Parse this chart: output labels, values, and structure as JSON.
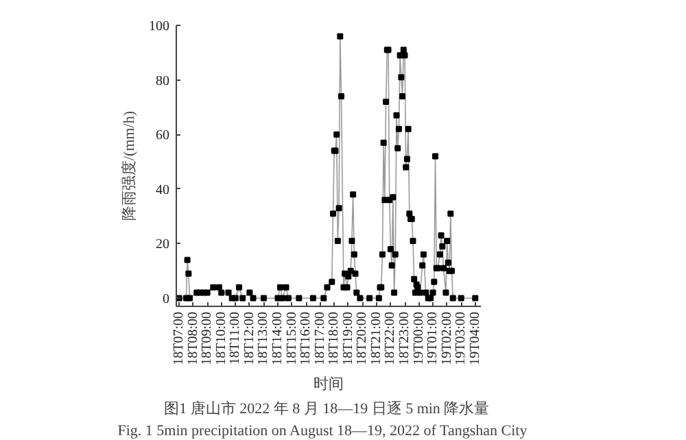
{
  "chart_data": {
    "type": "line",
    "xlabel": "时间",
    "ylabel": "降雨强度/(mm/h)",
    "annotations": [
      "图1  唐山市 2022 年 8 月 18—19 日逐 5 min 降水量",
      "Fig. 1    5min precipitation on August 18—19, 2022 of Tangshan City"
    ],
    "xlim": [
      "2022-08-18T06:48",
      "2022-08-19T04:24"
    ],
    "ylim": [
      -3,
      100
    ],
    "xticks": [
      {
        "value": "2022-08-18T07:00",
        "label": "18T07:00"
      },
      {
        "value": "2022-08-18T08:00",
        "label": "18T08:00"
      },
      {
        "value": "2022-08-18T09:00",
        "label": "18T09:00"
      },
      {
        "value": "2022-08-18T10:00",
        "label": "18T10:00"
      },
      {
        "value": "2022-08-18T11:00",
        "label": "18T11:00"
      },
      {
        "value": "2022-08-18T12:00",
        "label": "18T12:00"
      },
      {
        "value": "2022-08-18T13:00",
        "label": "18T13:00"
      },
      {
        "value": "2022-08-18T14:00",
        "label": "18T14:00"
      },
      {
        "value": "2022-08-18T15:00",
        "label": "18T15:00"
      },
      {
        "value": "2022-08-18T16:00",
        "label": "18T16:00"
      },
      {
        "value": "2022-08-18T17:00",
        "label": "18T17:00"
      },
      {
        "value": "2022-08-18T18:00",
        "label": "18T18:00"
      },
      {
        "value": "2022-08-18T19:00",
        "label": "18T19:00"
      },
      {
        "value": "2022-08-18T20:00",
        "label": "18T20:00"
      },
      {
        "value": "2022-08-18T21:00",
        "label": "18T21:00"
      },
      {
        "value": "2022-08-18T22:00",
        "label": "18T22:00"
      },
      {
        "value": "2022-08-18T23:00",
        "label": "18T23:00"
      },
      {
        "value": "2022-08-19T00:00",
        "label": "19T00:00"
      },
      {
        "value": "2022-08-19T01:00",
        "label": "19T01:00"
      },
      {
        "value": "2022-08-19T02:00",
        "label": "19T02:00"
      },
      {
        "value": "2022-08-19T03:00",
        "label": "19T03:00"
      },
      {
        "value": "2022-08-19T04:00",
        "label": "19T04:00"
      }
    ],
    "yticks": [
      0,
      20,
      40,
      60,
      80,
      100
    ],
    "grid": false,
    "marker": "square",
    "line_style": "solid",
    "series": [
      {
        "color": "#000000",
        "x": [
          "2022-08-18T07:00",
          "2022-08-18T07:30",
          "2022-08-18T07:35",
          "2022-08-18T07:40",
          "2022-08-18T07:45",
          "2022-08-18T08:15",
          "2022-08-18T08:30",
          "2022-08-18T08:45",
          "2022-08-18T09:00",
          "2022-08-18T09:25",
          "2022-08-18T09:50",
          "2022-08-18T10:00",
          "2022-08-18T10:30",
          "2022-08-18T10:45",
          "2022-08-18T11:00",
          "2022-08-18T11:15",
          "2022-08-18T11:30",
          "2022-08-18T12:00",
          "2022-08-18T12:15",
          "2022-08-18T13:00",
          "2022-08-18T14:00",
          "2022-08-18T14:10",
          "2022-08-18T14:20",
          "2022-08-18T14:35",
          "2022-08-18T14:45",
          "2022-08-18T15:30",
          "2022-08-18T16:30",
          "2022-08-18T17:15",
          "2022-08-18T17:30",
          "2022-08-18T17:50",
          "2022-08-18T17:55",
          "2022-08-18T18:00",
          "2022-08-18T18:05",
          "2022-08-18T18:10",
          "2022-08-18T18:15",
          "2022-08-18T18:20",
          "2022-08-18T18:25",
          "2022-08-18T18:30",
          "2022-08-18T18:40",
          "2022-08-18T18:45",
          "2022-08-18T18:55",
          "2022-08-18T19:00",
          "2022-08-18T19:10",
          "2022-08-18T19:15",
          "2022-08-18T19:20",
          "2022-08-18T19:25",
          "2022-08-18T19:30",
          "2022-08-18T19:35",
          "2022-08-18T19:50",
          "2022-08-18T20:30",
          "2022-08-18T21:10",
          "2022-08-18T21:15",
          "2022-08-18T21:20",
          "2022-08-18T21:25",
          "2022-08-18T21:30",
          "2022-08-18T21:35",
          "2022-08-18T21:40",
          "2022-08-18T21:45",
          "2022-08-18T21:50",
          "2022-08-18T21:55",
          "2022-08-18T22:00",
          "2022-08-18T22:05",
          "2022-08-18T22:10",
          "2022-08-18T22:15",
          "2022-08-18T22:20",
          "2022-08-18T22:25",
          "2022-08-18T22:30",
          "2022-08-18T22:35",
          "2022-08-18T22:40",
          "2022-08-18T22:45",
          "2022-08-18T22:50",
          "2022-08-18T22:55",
          "2022-08-18T23:00",
          "2022-08-18T23:05",
          "2022-08-18T23:10",
          "2022-08-18T23:15",
          "2022-08-18T23:20",
          "2022-08-18T23:25",
          "2022-08-18T23:30",
          "2022-08-18T23:35",
          "2022-08-18T23:40",
          "2022-08-18T23:45",
          "2022-08-18T23:50",
          "2022-08-18T23:55",
          "2022-08-19T00:05",
          "2022-08-19T00:15",
          "2022-08-19T00:20",
          "2022-08-19T00:30",
          "2022-08-19T00:40",
          "2022-08-19T00:50",
          "2022-08-19T01:00",
          "2022-08-19T01:05",
          "2022-08-19T01:10",
          "2022-08-19T01:15",
          "2022-08-19T01:20",
          "2022-08-19T01:30",
          "2022-08-19T01:35",
          "2022-08-19T01:40",
          "2022-08-19T01:45",
          "2022-08-19T01:55",
          "2022-08-19T02:00",
          "2022-08-19T02:05",
          "2022-08-19T02:10",
          "2022-08-19T02:15",
          "2022-08-19T02:20",
          "2022-08-19T02:25",
          "2022-08-19T03:00",
          "2022-08-19T04:00"
        ],
        "values": [
          0,
          0,
          14,
          9,
          0,
          2,
          2,
          2,
          2,
          4,
          4,
          2,
          2,
          0,
          0,
          4,
          0,
          2,
          0,
          0,
          0,
          4,
          0,
          4,
          0,
          0,
          0,
          0,
          4,
          6,
          31,
          54,
          54,
          60,
          21,
          33,
          96,
          74,
          4,
          9,
          4,
          8,
          10,
          21,
          38,
          16,
          9,
          2,
          0,
          0,
          0,
          4,
          4,
          16,
          57,
          36,
          72,
          91,
          91,
          36,
          18,
          12,
          37,
          2,
          16,
          67,
          55,
          62,
          89,
          81,
          74,
          91,
          89,
          48,
          51,
          62,
          31,
          29,
          29,
          21,
          7,
          2,
          5,
          4,
          2,
          12,
          16,
          2,
          0,
          0,
          2,
          6,
          52,
          11,
          11,
          16,
          23,
          19,
          11,
          2,
          21,
          13,
          10,
          31,
          10,
          0,
          0,
          0
        ]
      }
    ]
  }
}
